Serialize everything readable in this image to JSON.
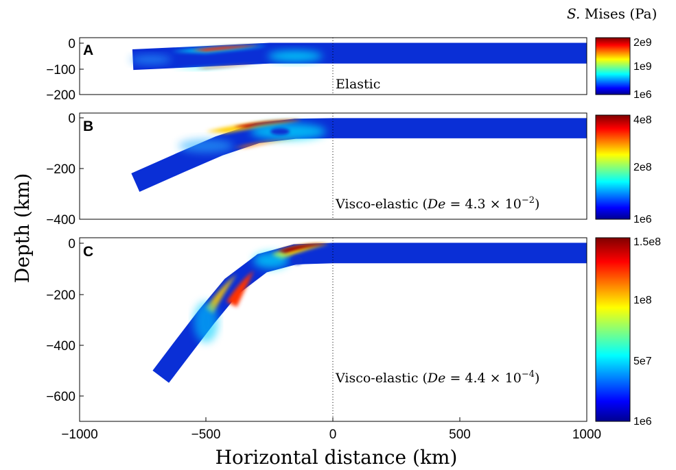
{
  "chart_data": {
    "type": "heatmap",
    "colorbar_title": {
      "italic": "S.",
      "rest": " Mises (Pa)"
    },
    "xlabel": "Horizontal distance (km)",
    "ylabel": "Depth (km)",
    "xlim": [
      -1000,
      1000
    ],
    "xticks": [
      -1000,
      -500,
      0,
      500,
      1000
    ],
    "xtick_labels": [
      "−1000",
      "−500",
      "0",
      "500",
      "1000"
    ],
    "trench_x": 0,
    "colormap": "jet",
    "panels": [
      {
        "letter": "A",
        "label": "Elastic",
        "ylim": [
          -200,
          20
        ],
        "yticks": [
          0,
          -100,
          -200
        ],
        "ytick_labels": [
          "0",
          "−100",
          "−200"
        ],
        "plate_thickness_km": 80,
        "slab_midline": [
          [
            1000,
            -40
          ],
          [
            0,
            -40
          ],
          [
            -250,
            -40
          ],
          [
            -500,
            -52
          ],
          [
            -790,
            -65
          ]
        ],
        "colorbar": {
          "min": 1000000.0,
          "max": 2000000000.0,
          "ticks": [
            1000000.0,
            1000000000.0,
            2000000000.0
          ],
          "tick_labels": [
            "1e6",
            "1e9",
            "2e9"
          ]
        }
      },
      {
        "letter": "B",
        "label_pre": "Visco-elastic (",
        "label_math": "De",
        "label_eq": " = 4.3 × 10",
        "label_exp": "−2",
        "label_post": ")",
        "ylim": [
          -400,
          20
        ],
        "yticks": [
          0,
          -200,
          -400
        ],
        "ytick_labels": [
          "0",
          "−200",
          "−400"
        ],
        "plate_thickness_km": 80,
        "slab_midline": [
          [
            1000,
            -40
          ],
          [
            0,
            -40
          ],
          [
            -150,
            -42
          ],
          [
            -300,
            -60
          ],
          [
            -450,
            -110
          ],
          [
            -600,
            -175
          ],
          [
            -780,
            -255
          ]
        ],
        "colorbar": {
          "min": 1000000.0,
          "max": 400000000.0,
          "ticks": [
            1000000.0,
            200000000.0,
            400000000.0
          ],
          "tick_labels": [
            "1e6",
            "2e8",
            "4e8"
          ]
        }
      },
      {
        "letter": "C",
        "label_pre": "Visco-elastic (",
        "label_math": "De",
        "label_eq": " = 4.4 × 10",
        "label_exp": "−4",
        "label_post": ")",
        "ylim": [
          -700,
          20
        ],
        "yticks": [
          0,
          -200,
          -400,
          -600
        ],
        "ytick_labels": [
          "0",
          "−200",
          "−400",
          "−600"
        ],
        "plate_thickness_km": 80,
        "slab_midline": [
          [
            1000,
            -40
          ],
          [
            0,
            -40
          ],
          [
            -150,
            -45
          ],
          [
            -280,
            -80
          ],
          [
            -400,
            -170
          ],
          [
            -500,
            -290
          ],
          [
            -600,
            -420
          ],
          [
            -680,
            -525
          ]
        ],
        "colorbar": {
          "min": 1000000.0,
          "max": 150000000.0,
          "ticks": [
            1000000.0,
            50000000.0,
            100000000.0,
            150000000.0
          ],
          "tick_labels": [
            "1e6",
            "5e7",
            "1e8",
            "1.5e8"
          ]
        }
      }
    ]
  }
}
